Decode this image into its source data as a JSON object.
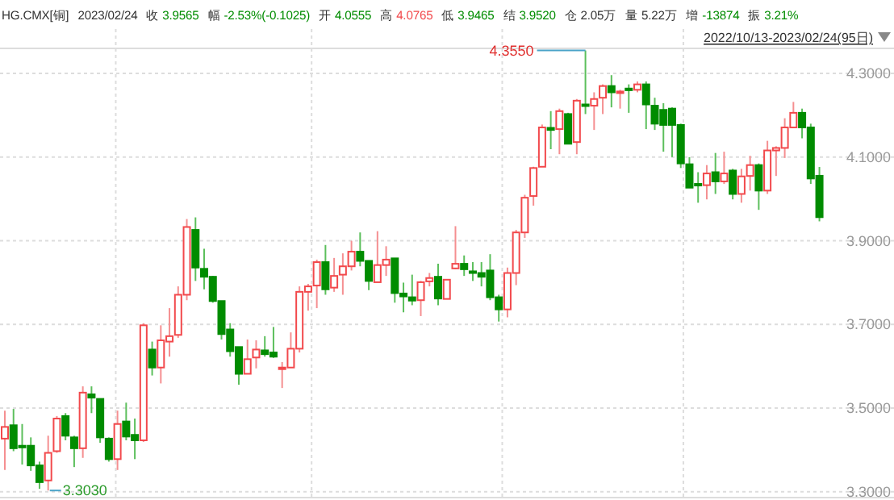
{
  "chart_data": {
    "type": "candlestick",
    "title": "HG.CMX[铜]",
    "annotations": [
      "2023/02/24",
      "收 3.9565",
      "幅 -2.53%(-0.1025)",
      "开 4.0555",
      "高 4.0765",
      "低 3.9465",
      "结 3.9520",
      "仓 2.05万",
      "量 5.22万",
      "增 -13874",
      "振 3.21%",
      "2022/10/13-2023/02/24(95日)",
      "4.3550",
      "3.3030"
    ],
    "categories": [
      null,
      null,
      null,
      null,
      null,
      null,
      null,
      null,
      null,
      null,
      null,
      null,
      null,
      null,
      null,
      null,
      null,
      null,
      null,
      null,
      null,
      null,
      null,
      null,
      null,
      null,
      null,
      null,
      null,
      null,
      null,
      null,
      null,
      null,
      null,
      null,
      null,
      null,
      null,
      null,
      null,
      null,
      null,
      null,
      null,
      null,
      null,
      null,
      null,
      null,
      null,
      null,
      null,
      null,
      null,
      null,
      null,
      null,
      null,
      null,
      null,
      null,
      null,
      null,
      null,
      null,
      null,
      null,
      null,
      null,
      null,
      null,
      null,
      null,
      null,
      null,
      null,
      null,
      null,
      null,
      null,
      null,
      null,
      null,
      null,
      null,
      null,
      null,
      null,
      null,
      null,
      null,
      null,
      null,
      null
    ],
    "ohlc": [
      [
        3.427,
        3.494,
        3.352,
        3.455
      ],
      [
        3.459,
        3.498,
        3.397,
        3.404
      ],
      [
        3.41,
        3.462,
        3.365,
        3.406
      ],
      [
        3.41,
        3.43,
        3.35,
        3.363
      ],
      [
        3.363,
        3.372,
        3.307,
        3.323
      ],
      [
        3.327,
        3.434,
        3.303,
        3.393
      ],
      [
        3.397,
        3.481,
        3.393,
        3.475
      ],
      [
        3.481,
        3.488,
        3.423,
        3.434
      ],
      [
        3.43,
        3.434,
        3.359,
        3.404
      ],
      [
        3.404,
        3.552,
        3.381,
        3.537
      ],
      [
        3.533,
        3.552,
        3.488,
        3.525
      ],
      [
        3.522,
        3.522,
        3.417,
        3.43
      ],
      [
        3.427,
        3.43,
        3.372,
        3.378
      ],
      [
        3.378,
        3.494,
        3.352,
        3.462
      ],
      [
        3.468,
        3.513,
        3.423,
        3.432
      ],
      [
        3.436,
        3.475,
        3.378,
        3.423
      ],
      [
        3.423,
        3.703,
        3.419,
        3.698
      ],
      [
        3.64,
        3.659,
        3.578,
        3.597
      ],
      [
        3.597,
        3.698,
        3.559,
        3.662
      ],
      [
        3.659,
        3.739,
        3.623,
        3.672
      ],
      [
        3.675,
        3.791,
        3.668,
        3.771
      ],
      [
        3.771,
        3.952,
        3.758,
        3.933
      ],
      [
        3.926,
        3.956,
        3.804,
        3.836
      ],
      [
        3.833,
        3.881,
        3.784,
        3.814
      ],
      [
        3.814,
        3.816,
        3.752,
        3.756
      ],
      [
        3.756,
        3.756,
        3.664,
        3.677
      ],
      [
        3.688,
        3.703,
        3.623,
        3.636
      ],
      [
        3.646,
        3.646,
        3.556,
        3.582
      ],
      [
        3.582,
        3.664,
        3.582,
        3.617
      ],
      [
        3.621,
        3.662,
        3.595,
        3.64
      ],
      [
        3.638,
        3.672,
        3.623,
        3.629
      ],
      [
        3.633,
        3.694,
        3.62,
        3.623
      ],
      [
        3.595,
        3.61,
        3.548,
        3.597
      ],
      [
        3.597,
        3.681,
        3.597,
        3.642
      ],
      [
        3.642,
        3.791,
        3.633,
        3.778
      ],
      [
        3.778,
        3.797,
        3.733,
        3.791
      ],
      [
        3.793,
        3.855,
        3.739,
        3.849
      ],
      [
        3.849,
        3.89,
        3.771,
        3.784
      ],
      [
        3.788,
        3.859,
        3.778,
        3.816
      ],
      [
        3.819,
        3.87,
        3.771,
        3.839
      ],
      [
        3.839,
        3.9,
        3.829,
        3.874
      ],
      [
        3.874,
        3.92,
        3.839,
        3.852
      ],
      [
        3.852,
        3.852,
        3.782,
        3.804
      ],
      [
        3.801,
        3.923,
        3.801,
        3.842
      ],
      [
        3.842,
        3.887,
        3.816,
        3.855
      ],
      [
        3.858,
        3.858,
        3.752,
        3.775
      ],
      [
        3.774,
        3.8,
        3.729,
        3.767
      ],
      [
        3.765,
        3.819,
        3.746,
        3.757
      ],
      [
        3.758,
        3.804,
        3.72,
        3.801
      ],
      [
        3.803,
        3.823,
        3.791,
        3.811
      ],
      [
        3.814,
        3.845,
        3.746,
        3.762
      ],
      [
        3.761,
        3.807,
        3.761,
        3.807
      ],
      [
        3.834,
        3.935,
        3.832,
        3.845
      ],
      [
        3.845,
        3.865,
        3.816,
        3.832
      ],
      [
        3.827,
        3.849,
        3.804,
        3.823
      ],
      [
        3.823,
        3.849,
        3.791,
        3.814
      ],
      [
        3.829,
        3.868,
        3.758,
        3.765
      ],
      [
        3.765,
        3.771,
        3.707,
        3.736
      ],
      [
        3.736,
        3.836,
        3.717,
        3.823
      ],
      [
        3.823,
        3.926,
        3.794,
        3.92
      ],
      [
        3.92,
        4.01,
        3.907,
        4.003
      ],
      [
        4.007,
        4.077,
        3.984,
        4.074
      ],
      [
        4.077,
        4.178,
        4.077,
        4.171
      ],
      [
        4.17,
        4.21,
        4.119,
        4.165
      ],
      [
        4.167,
        4.216,
        4.107,
        4.21
      ],
      [
        4.203,
        4.206,
        4.132,
        4.132
      ],
      [
        4.136,
        4.239,
        4.107,
        4.235
      ],
      [
        4.226,
        4.355,
        4.203,
        4.223
      ],
      [
        4.223,
        4.255,
        4.165,
        4.239
      ],
      [
        4.242,
        4.274,
        4.203,
        4.27
      ],
      [
        4.27,
        4.296,
        4.219,
        4.255
      ],
      [
        4.255,
        4.261,
        4.216,
        4.257
      ],
      [
        4.264,
        4.274,
        4.206,
        4.26
      ],
      [
        4.261,
        4.281,
        4.255,
        4.274
      ],
      [
        4.274,
        4.281,
        4.167,
        4.226
      ],
      [
        4.223,
        4.242,
        4.165,
        4.18
      ],
      [
        4.213,
        4.229,
        4.113,
        4.177
      ],
      [
        4.216,
        4.219,
        4.1,
        4.177
      ],
      [
        4.177,
        4.18,
        4.074,
        4.085
      ],
      [
        4.083,
        4.1,
        4.027,
        4.027
      ],
      [
        4.036,
        4.064,
        3.991,
        4.033
      ],
      [
        4.033,
        4.081,
        3.999,
        4.061
      ],
      [
        4.064,
        4.11,
        4.012,
        4.042
      ],
      [
        4.042,
        4.113,
        4.036,
        4.061
      ],
      [
        4.068,
        4.072,
        3.999,
        4.012
      ],
      [
        4.012,
        4.072,
        3.991,
        4.054
      ],
      [
        4.055,
        4.103,
        4.02,
        4.081
      ],
      [
        4.081,
        4.085,
        3.974,
        4.02
      ],
      [
        4.02,
        4.139,
        4.012,
        4.116
      ],
      [
        4.116,
        4.126,
        4.055,
        4.122
      ],
      [
        4.122,
        4.193,
        4.098,
        4.171
      ],
      [
        4.171,
        4.232,
        4.171,
        4.206
      ],
      [
        4.206,
        4.216,
        4.145,
        4.171
      ],
      [
        4.171,
        4.18,
        4.036,
        4.049
      ],
      [
        4.0555,
        4.0765,
        3.9465,
        3.9565
      ]
    ],
    "ylim": [
      3.288,
      4.36
    ],
    "yticks": [
      {
        "value": 3.3,
        "label": "3.3000"
      },
      {
        "value": 3.5,
        "label": "3.5000"
      },
      {
        "value": 3.7,
        "label": "3.7000"
      },
      {
        "value": 3.9,
        "label": "3.9000"
      },
      {
        "value": 4.1,
        "label": "4.1000"
      },
      {
        "value": 4.3,
        "label": "4.3000"
      }
    ],
    "tick_labels": "y",
    "grid": true
  }
}
